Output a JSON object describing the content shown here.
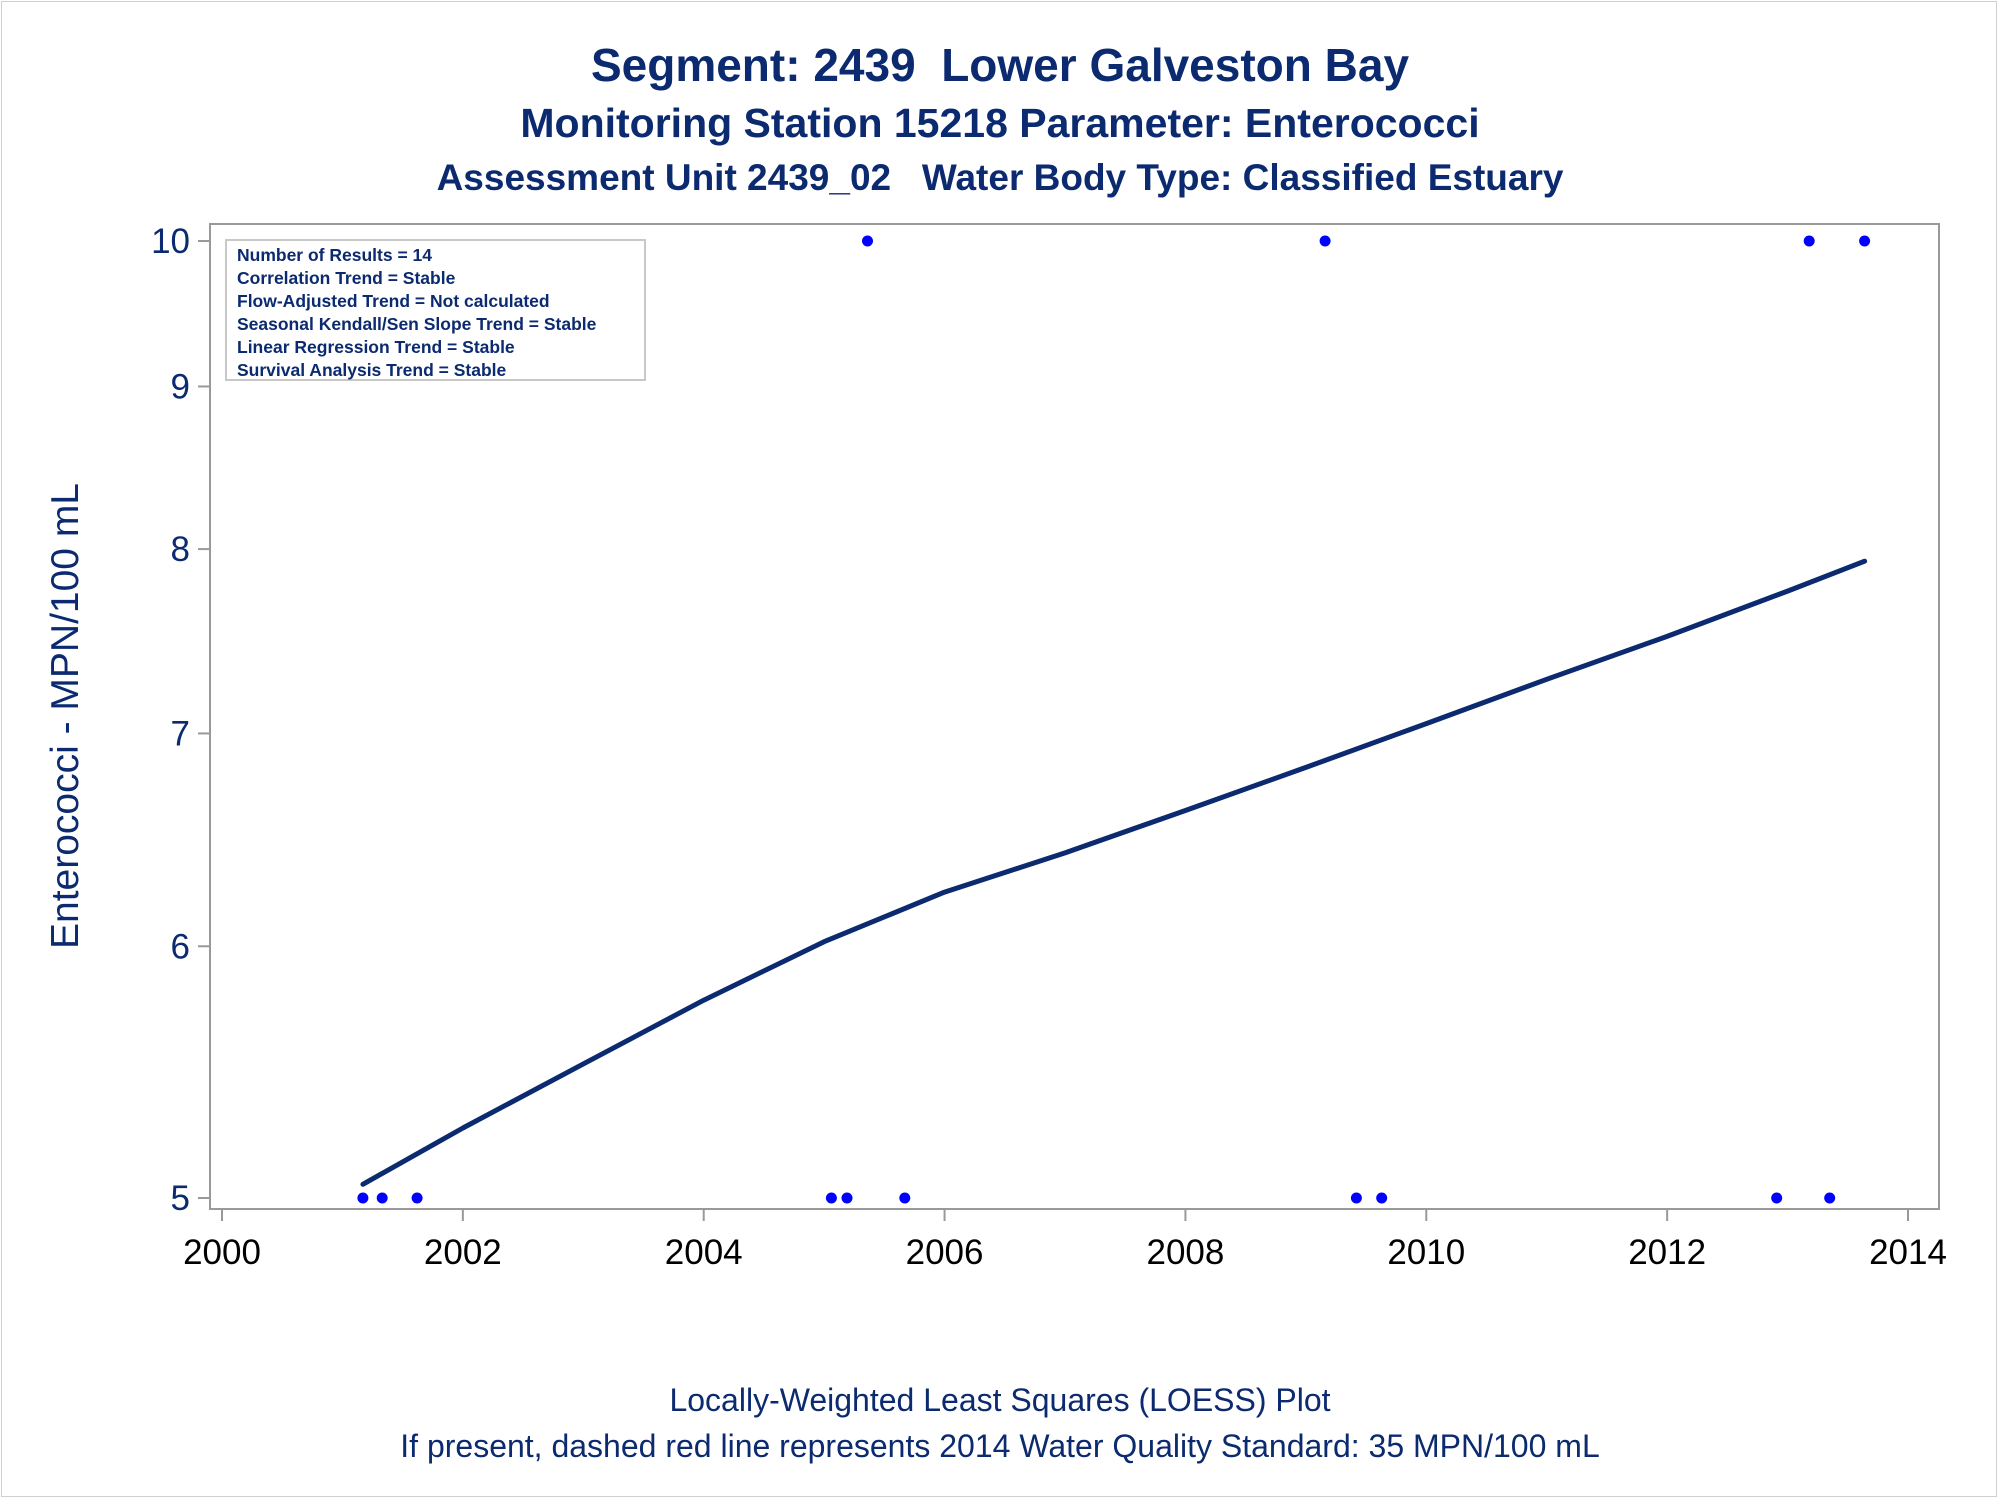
{
  "header": {
    "title": "Segment: 2439  Lower Galveston Bay",
    "subtitle": "Monitoring Station 15218 Parameter: Enterococci",
    "subtitle2": "Assessment Unit 2439_02   Water Body Type: Classified Estuary"
  },
  "stats": [
    "Number of Results = 14",
    "Correlation Trend = Stable",
    "Flow-Adjusted Trend = Not calculated",
    "Seasonal Kendall/Sen Slope Trend = Stable",
    "Linear Regression Trend = Stable",
    "Survival Analysis Trend = Stable"
  ],
  "footer": {
    "line1": "Locally-Weighted Least Squares (LOESS) Plot",
    "line2": "If present, dashed red line represents 2014 Water Quality Standard: 35 MPN/100 mL"
  },
  "colors": {
    "text": "#0b2a6f",
    "loess_line": "#0b2a6f",
    "points": "#0000ff",
    "axes": "#999999"
  },
  "chart_data": {
    "type": "scatter",
    "xlabel": "",
    "ylabel": "Enterococci - MPN/100 mL",
    "y_scale": "log",
    "xlim": [
      2000,
      2014
    ],
    "ylim": [
      5,
      10
    ],
    "x_ticks": [
      2000,
      2002,
      2004,
      2006,
      2008,
      2010,
      2012,
      2014
    ],
    "y_ticks": [
      5,
      6,
      7,
      8,
      9,
      10
    ],
    "grid": false,
    "series": [
      {
        "kind": "scatter",
        "points": [
          {
            "x": 2001.17,
            "y": 5
          },
          {
            "x": 2001.33,
            "y": 5
          },
          {
            "x": 2001.62,
            "y": 5
          },
          {
            "x": 2005.06,
            "y": 5
          },
          {
            "x": 2005.19,
            "y": 5
          },
          {
            "x": 2005.36,
            "y": 10
          },
          {
            "x": 2005.67,
            "y": 5
          },
          {
            "x": 2009.16,
            "y": 10
          },
          {
            "x": 2009.42,
            "y": 5
          },
          {
            "x": 2009.63,
            "y": 5
          },
          {
            "x": 2012.91,
            "y": 5
          },
          {
            "x": 2013.18,
            "y": 10
          },
          {
            "x": 2013.35,
            "y": 5
          },
          {
            "x": 2013.64,
            "y": 10
          }
        ]
      },
      {
        "kind": "loess",
        "points": [
          {
            "x": 2001.17,
            "y": 5.05
          },
          {
            "x": 2002.0,
            "y": 5.26
          },
          {
            "x": 2003.0,
            "y": 5.51
          },
          {
            "x": 2004.0,
            "y": 5.77
          },
          {
            "x": 2005.0,
            "y": 6.02
          },
          {
            "x": 2006.0,
            "y": 6.24
          },
          {
            "x": 2007.0,
            "y": 6.42
          },
          {
            "x": 2008.0,
            "y": 6.62
          },
          {
            "x": 2009.0,
            "y": 6.83
          },
          {
            "x": 2010.0,
            "y": 7.05
          },
          {
            "x": 2011.0,
            "y": 7.28
          },
          {
            "x": 2012.0,
            "y": 7.51
          },
          {
            "x": 2013.0,
            "y": 7.76
          },
          {
            "x": 2013.64,
            "y": 7.93
          }
        ]
      }
    ]
  }
}
